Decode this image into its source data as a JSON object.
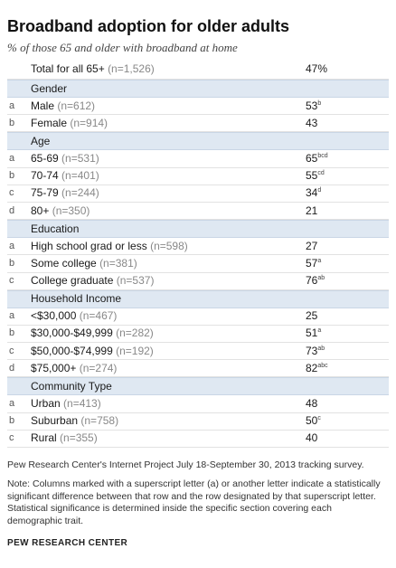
{
  "title": "Broadband adoption for older adults",
  "subtitle": "% of those 65 and older with broadband at home",
  "total": {
    "label": "Total for all 65+",
    "n": "(n=1,526)",
    "value": "47%"
  },
  "sections": [
    {
      "heading": "Gender",
      "rows": [
        {
          "letter": "a",
          "label": "Male",
          "n": "(n=612)",
          "value": "53",
          "sup": "b"
        },
        {
          "letter": "b",
          "label": "Female",
          "n": "(n=914)",
          "value": "43",
          "sup": ""
        }
      ]
    },
    {
      "heading": "Age",
      "rows": [
        {
          "letter": "a",
          "label": "65-69",
          "n": "(n=531)",
          "value": "65",
          "sup": "bcd"
        },
        {
          "letter": "b",
          "label": "70-74",
          "n": "(n=401)",
          "value": "55",
          "sup": "cd"
        },
        {
          "letter": "c",
          "label": "75-79",
          "n": "(n=244)",
          "value": "34",
          "sup": "d"
        },
        {
          "letter": "d",
          "label": "80+",
          "n": "(n=350)",
          "value": "21",
          "sup": ""
        }
      ]
    },
    {
      "heading": "Education",
      "rows": [
        {
          "letter": "a",
          "label": "High school grad or less",
          "n": "(n=598)",
          "value": "27",
          "sup": ""
        },
        {
          "letter": "b",
          "label": "Some college",
          "n": "(n=381)",
          "value": "57",
          "sup": "a"
        },
        {
          "letter": "c",
          "label": "College graduate",
          "n": "(n=537)",
          "value": "76",
          "sup": "ab"
        }
      ]
    },
    {
      "heading": "Household Income",
      "rows": [
        {
          "letter": "a",
          "label": "<$30,000",
          "n": "(n=467)",
          "value": "25",
          "sup": ""
        },
        {
          "letter": "b",
          "label": "$30,000-$49,999",
          "n": "(n=282)",
          "value": "51",
          "sup": "a"
        },
        {
          "letter": "c",
          "label": "$50,000-$74,999",
          "n": "(n=192)",
          "value": "73",
          "sup": "ab"
        },
        {
          "letter": "d",
          "label": "$75,000+",
          "n": "(n=274)",
          "value": "82",
          "sup": "abc"
        }
      ]
    },
    {
      "heading": "Community Type",
      "rows": [
        {
          "letter": "a",
          "label": "Urban",
          "n": "(n=413)",
          "value": "48",
          "sup": ""
        },
        {
          "letter": "b",
          "label": "Suburban",
          "n": "(n=758)",
          "value": "50",
          "sup": "c"
        },
        {
          "letter": "c",
          "label": "Rural",
          "n": "(n=355)",
          "value": "40",
          "sup": ""
        }
      ]
    }
  ],
  "source": "Pew Research Center's Internet Project July 18-September 30, 2013 tracking survey.",
  "note": "Note: Columns marked with a superscript letter (a) or another letter indicate a statistically significant difference between that row and the row designated by that superscript letter. Statistical significance is determined inside the specific section covering each demographic trait.",
  "footer": "PEW RESEARCH CENTER",
  "colors": {
    "section_bg": "#dfe8f2",
    "row_divider": "#e2e2e2",
    "n_text": "#888888"
  }
}
